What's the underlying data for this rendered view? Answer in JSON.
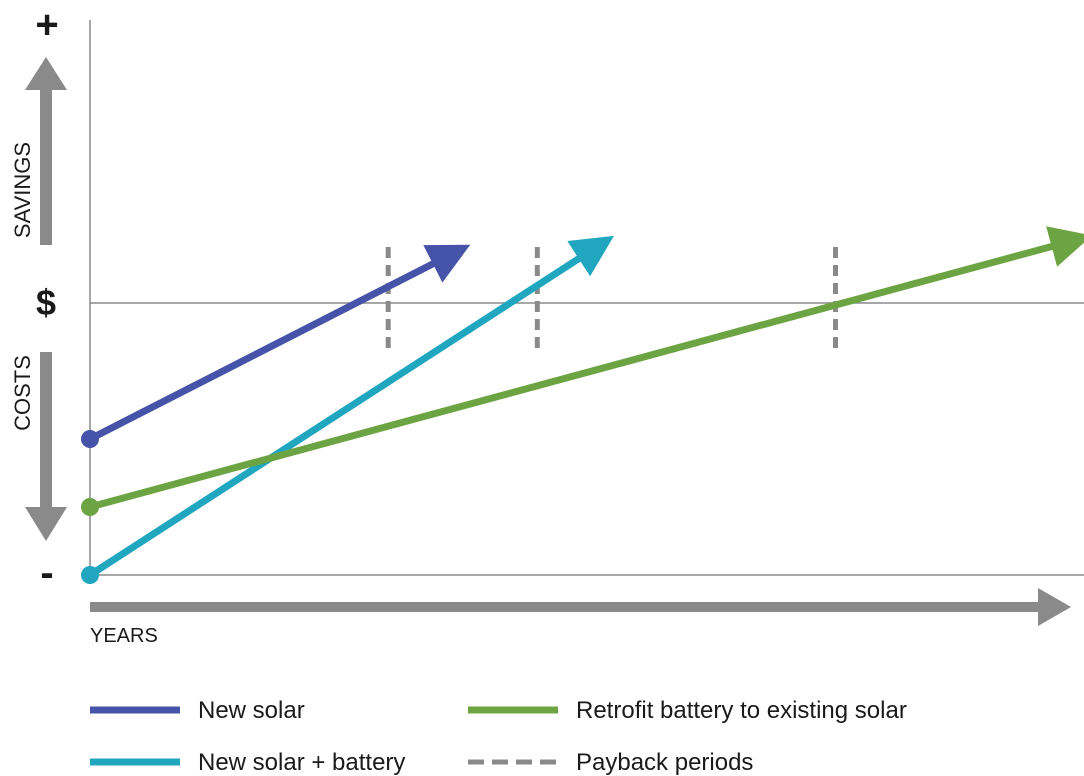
{
  "chart_data": {
    "type": "line",
    "title": "",
    "xlabel": "YEARS",
    "y_axis": {
      "top_sign": "+",
      "bottom_sign": "-",
      "zero_label": "$",
      "upper_label": "SAVINGS",
      "lower_label": "COSTS"
    },
    "x_range": [
      0,
      10
    ],
    "y_range": [
      -1,
      1
    ],
    "grid": false,
    "series": [
      {
        "name": "New solar",
        "color": "#4553a8",
        "points": [
          [
            0,
            -0.5
          ],
          [
            3.75,
            0.2
          ]
        ]
      },
      {
        "name": "New solar + battery",
        "color": "#20a7bf",
        "points": [
          [
            0,
            -1.0
          ],
          [
            5.2,
            0.23
          ]
        ]
      },
      {
        "name": "Retrofit battery to existing solar",
        "color": "#6ca443",
        "points": [
          [
            0,
            -0.75
          ],
          [
            10,
            0.24
          ]
        ]
      }
    ],
    "payback_periods": {
      "name": "Payback periods",
      "color": "#8a8a8a",
      "x": [
        3,
        4.5,
        7.5
      ]
    },
    "legend": {
      "position": "bottom",
      "items": [
        {
          "label": "New solar",
          "color": "#4553a8",
          "style": "solid"
        },
        {
          "label": "Retrofit battery to existing solar",
          "color": "#6ca443",
          "style": "solid"
        },
        {
          "label": "New solar + battery",
          "color": "#20a7bf",
          "style": "solid"
        },
        {
          "label": "Payback periods",
          "color": "#8a8a8a",
          "style": "dashed"
        }
      ]
    }
  }
}
